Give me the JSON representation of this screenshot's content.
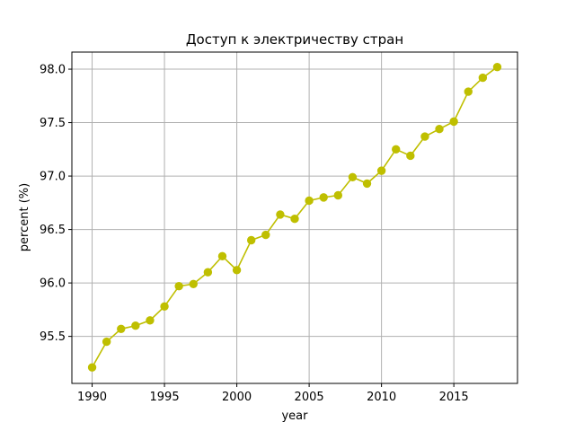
{
  "chart_data": {
    "type": "line",
    "title": "Доступ к электричеству стран",
    "xlabel": "year",
    "ylabel": "percent (%)",
    "xlim": [
      1988.6,
      2019.4
    ],
    "ylim": [
      95.06,
      98.16
    ],
    "xticks": [
      1990,
      1995,
      2000,
      2005,
      2010,
      2015
    ],
    "yticks": [
      95.5,
      96.0,
      96.5,
      97.0,
      97.5,
      98.0
    ],
    "xtick_labels": [
      "1990",
      "1995",
      "2000",
      "2005",
      "2010",
      "2015"
    ],
    "ytick_labels": [
      "95.5",
      "96.0",
      "96.5",
      "97.0",
      "97.5",
      "98.0"
    ],
    "grid": true,
    "color": "#bfbf00",
    "x": [
      1990,
      1991,
      1992,
      1993,
      1994,
      1995,
      1996,
      1997,
      1998,
      1999,
      2000,
      2001,
      2002,
      2003,
      2004,
      2005,
      2006,
      2007,
      2008,
      2009,
      2010,
      2011,
      2012,
      2013,
      2014,
      2015,
      2016,
      2017,
      2018
    ],
    "values": [
      95.21,
      95.45,
      95.57,
      95.6,
      95.65,
      95.78,
      95.97,
      95.99,
      96.1,
      96.25,
      96.12,
      96.4,
      96.45,
      96.64,
      96.6,
      96.77,
      96.8,
      96.82,
      96.99,
      96.93,
      97.05,
      97.25,
      97.19,
      97.37,
      97.44,
      97.51,
      97.79,
      97.92,
      98.02
    ]
  }
}
